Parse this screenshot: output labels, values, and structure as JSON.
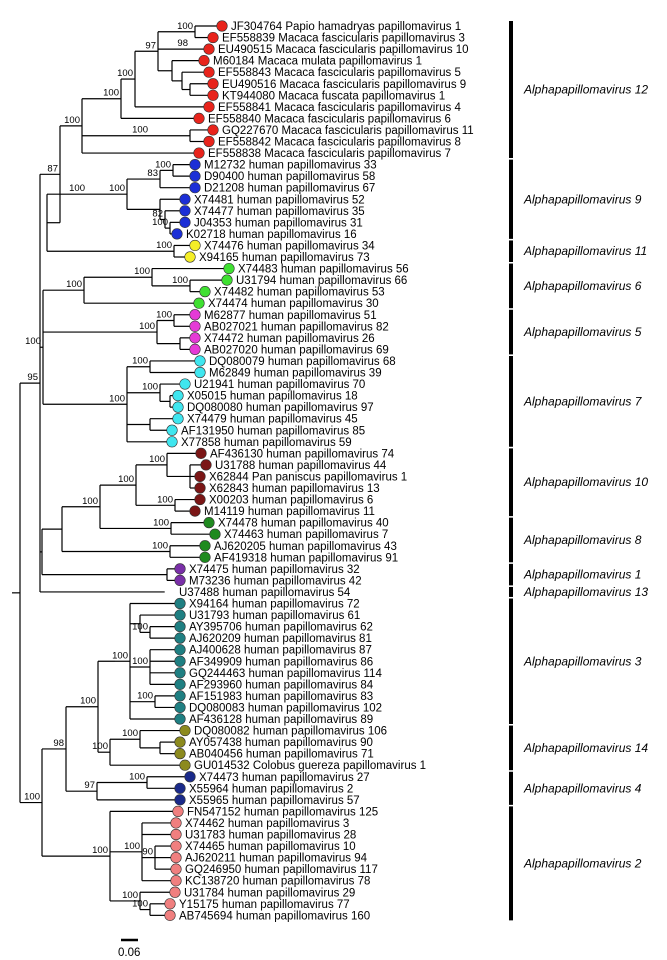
{
  "tree": {
    "taxa": [
      {
        "acc": "JF304764",
        "name": "Papio hamadryas papillomavirus 1",
        "color": "#e8241c"
      },
      {
        "acc": "EF558839",
        "name": "Macaca fascicularis papillomavirus 3",
        "color": "#e8241c"
      },
      {
        "acc": "EU490515",
        "name": "Macaca fascicularis papillomavirus 10",
        "color": "#e8241c"
      },
      {
        "acc": "M60184",
        "name": "Macaca mulata papillomavirus 1",
        "color": "#e8241c"
      },
      {
        "acc": "EF558843",
        "name": "Macaca fascicularis papillomavirus 5",
        "color": "#e8241c"
      },
      {
        "acc": "EU490516",
        "name": "Macaca fascicularis papillomavirus 9",
        "color": "#e8241c"
      },
      {
        "acc": "KT944080",
        "name": "Macaca fuscata papillomavirus 1",
        "color": "#e8241c"
      },
      {
        "acc": "EF558841",
        "name": "Macaca fascicularis papillomavirus 4",
        "color": "#e8241c"
      },
      {
        "acc": "EF558840",
        "name": "Macaca fascicularis papillomavirus 6",
        "color": "#e8241c"
      },
      {
        "acc": "GQ227670",
        "name": "Macaca fascicularis papillomavirus 11",
        "color": "#e8241c"
      },
      {
        "acc": "EF558842",
        "name": "Macaca fascicularis papillomavirus 8",
        "color": "#e8241c"
      },
      {
        "acc": "EF558838",
        "name": "Macaca fascicularis papillomavirus 7",
        "color": "#e8241c"
      },
      {
        "acc": "M12732",
        "name": "human papillomavirus 33",
        "color": "#1c2fd6"
      },
      {
        "acc": "D90400",
        "name": "human papillomavirus 58",
        "color": "#1c2fd6"
      },
      {
        "acc": "D21208",
        "name": "human papillomavirus 67",
        "color": "#1c2fd6"
      },
      {
        "acc": "X74481",
        "name": "human papillomavirus 52",
        "color": "#1c2fd6"
      },
      {
        "acc": "X74477",
        "name": "human papillomavirus 35",
        "color": "#1c2fd6"
      },
      {
        "acc": "J04353",
        "name": "human papillomavirus 31",
        "color": "#1c2fd6"
      },
      {
        "acc": "K02718",
        "name": "human papillomavirus 16",
        "color": "#1c2fd6"
      },
      {
        "acc": "X74476",
        "name": "human papillomavirus 34",
        "color": "#f5ee27"
      },
      {
        "acc": "X94165",
        "name": "human papillomavirus 73",
        "color": "#f5ee27"
      },
      {
        "acc": "X74483",
        "name": "human papillomavirus 56",
        "color": "#3fe031"
      },
      {
        "acc": "U31794",
        "name": "human papillomavirus 66",
        "color": "#3fe031"
      },
      {
        "acc": "X74482",
        "name": "human papillomavirus 53",
        "color": "#3fe031"
      },
      {
        "acc": "X74474",
        "name": "human papillomavirus 30",
        "color": "#3fe031"
      },
      {
        "acc": "M62877",
        "name": "human papillomavirus 51",
        "color": "#e53ad6"
      },
      {
        "acc": "AB027021",
        "name": "human papillomavirus 82",
        "color": "#e53ad6"
      },
      {
        "acc": "X74472",
        "name": "human papillomavirus 26",
        "color": "#e53ad6"
      },
      {
        "acc": "AB027020",
        "name": "human papillomavirus 69",
        "color": "#e53ad6"
      },
      {
        "acc": "DQ080079",
        "name": "human papillomavirus 68",
        "color": "#3fe6ef"
      },
      {
        "acc": "M62849",
        "name": "human papillomavirus 39",
        "color": "#3fe6ef"
      },
      {
        "acc": "U21941",
        "name": "human papillomavirus 70",
        "color": "#3fe6ef"
      },
      {
        "acc": "X05015",
        "name": "human papillomavirus 18",
        "color": "#3fe6ef"
      },
      {
        "acc": "DQ080080",
        "name": "human papillomavirus 97",
        "color": "#3fe6ef"
      },
      {
        "acc": "X74479",
        "name": "human papillomavirus 45",
        "color": "#3fe6ef"
      },
      {
        "acc": "AF131950",
        "name": "human papillomavirus 85",
        "color": "#3fe6ef"
      },
      {
        "acc": "X77858",
        "name": "human papillomavirus 59",
        "color": "#3fe6ef"
      },
      {
        "acc": "AF436130",
        "name": "human papillomavirus 74",
        "color": "#7b1616"
      },
      {
        "acc": "U31788",
        "name": "human papillomavirus 44",
        "color": "#7b1616"
      },
      {
        "acc": "X62844",
        "name": "Pan paniscus papillomavirus 1",
        "color": "#7b1616"
      },
      {
        "acc": "X62843",
        "name": "human papillomavirus 13",
        "color": "#7b1616"
      },
      {
        "acc": "X00203",
        "name": "human papillomavirus 6",
        "color": "#7b1616"
      },
      {
        "acc": "M14119",
        "name": "human papillomavirus 11",
        "color": "#7b1616"
      },
      {
        "acc": "X74478",
        "name": "human papillomavirus 40",
        "color": "#1f8a1f"
      },
      {
        "acc": "X74463",
        "name": "human papillomavirus 7",
        "color": "#1f8a1f"
      },
      {
        "acc": "AJ620205",
        "name": "human papillomavirus 43",
        "color": "#1f8a1f"
      },
      {
        "acc": "AF419318",
        "name": "human papillomavirus 91",
        "color": "#1f8a1f"
      },
      {
        "acc": "X74475",
        "name": "human papillomavirus 32",
        "color": "#7a2fa8"
      },
      {
        "acc": "M73236",
        "name": "human papillomavirus 42",
        "color": "#7a2fa8"
      },
      {
        "acc": "U37488",
        "name": "human papillomavirus 54",
        "color": ""
      },
      {
        "acc": "X94164",
        "name": "human papillomavirus 72",
        "color": "#1f7f82"
      },
      {
        "acc": "U31793",
        "name": "human papillomavirus 61",
        "color": "#1f7f82"
      },
      {
        "acc": "AY395706",
        "name": "human papillomavirus 62",
        "color": "#1f7f82"
      },
      {
        "acc": "AJ620209",
        "name": "human papillomavirus 81",
        "color": "#1f7f82"
      },
      {
        "acc": "AJ400628",
        "name": "human papillomavirus 87",
        "color": "#1f7f82"
      },
      {
        "acc": "AF349909",
        "name": "human papillomavirus 86",
        "color": "#1f7f82"
      },
      {
        "acc": "GQ244463",
        "name": "human papillomavirus 114",
        "color": "#1f7f82"
      },
      {
        "acc": "AF293960",
        "name": "human papillomavirus 84",
        "color": "#1f7f82"
      },
      {
        "acc": "AF151983",
        "name": "human papillomavirus 83",
        "color": "#1f7f82"
      },
      {
        "acc": "DQ080083",
        "name": "human papillomavirus 102",
        "color": "#1f7f82"
      },
      {
        "acc": "AF436128",
        "name": "human papillomavirus 89",
        "color": "#1f7f82"
      },
      {
        "acc": "DQ080082",
        "name": "human papillomavirus 106",
        "color": "#8c8a1e"
      },
      {
        "acc": "AY057438",
        "name": "human papillomavirus 90",
        "color": "#8c8a1e"
      },
      {
        "acc": "AB040456",
        "name": "human papillomavirus 71",
        "color": "#8c8a1e"
      },
      {
        "acc": "GU014532",
        "name": "Colobus guereza papillomavirus 1",
        "color": "#8c8a1e"
      },
      {
        "acc": "X74473",
        "name": "human papillomavirus 27",
        "color": "#1a2a8a"
      },
      {
        "acc": "X55964",
        "name": "human papillomavirus 2",
        "color": "#1a2a8a"
      },
      {
        "acc": "X55965",
        "name": "human papillomavirus 57",
        "color": "#1a2a8a"
      },
      {
        "acc": "FN547152",
        "name": "human papillomavirus 125",
        "color": "#f07f7f"
      },
      {
        "acc": "X74462",
        "name": "human papillomavirus 3",
        "color": "#f07f7f"
      },
      {
        "acc": "U31783",
        "name": "human papillomavirus 28",
        "color": "#f07f7f"
      },
      {
        "acc": "X74465",
        "name": "human papillomavirus 10",
        "color": "#f07f7f"
      },
      {
        "acc": "AJ620211",
        "name": "human papillomavirus 94",
        "color": "#f07f7f"
      },
      {
        "acc": "GQ246950",
        "name": "human papillomavirus 117",
        "color": "#f07f7f"
      },
      {
        "acc": "KC138720",
        "name": "human papillomavirus 78",
        "color": "#f07f7f"
      },
      {
        "acc": "U31784",
        "name": "human papillomavirus 29",
        "color": "#f07f7f"
      },
      {
        "acc": "Y15175",
        "name": "human papillomavirus 77",
        "color": "#f07f7f"
      },
      {
        "acc": "AB745694",
        "name": "human papillomavirus 160",
        "color": "#f07f7f"
      }
    ],
    "clades": [
      {
        "label": "Alphapapillomavirus 12",
        "from": 0,
        "to": 11
      },
      {
        "label": "Alphapapillomavirus 9",
        "from": 12,
        "to": 18
      },
      {
        "label": "Alphapapillomavirus 11",
        "from": 19,
        "to": 20
      },
      {
        "label": "Alphapapillomavirus 6",
        "from": 21,
        "to": 24
      },
      {
        "label": "Alphapapillomavirus 5",
        "from": 25,
        "to": 28
      },
      {
        "label": "Alphapapillomavirus 7",
        "from": 29,
        "to": 36
      },
      {
        "label": "Alphapapillomavirus 10",
        "from": 37,
        "to": 42
      },
      {
        "label": "Alphapapillomavirus 8",
        "from": 43,
        "to": 46
      },
      {
        "label": "Alphapapillomavirus 1",
        "from": 47,
        "to": 48
      },
      {
        "label": "Alphapapillomavirus 13",
        "from": 49,
        "to": 49
      },
      {
        "label": "Alphapapillomavirus 3",
        "from": 50,
        "to": 60
      },
      {
        "label": "Alphapapillomavirus 14",
        "from": 61,
        "to": 64
      },
      {
        "label": "Alphapapillomavirus 4",
        "from": 65,
        "to": 67
      },
      {
        "label": "Alphapapillomavirus 2",
        "from": 68,
        "to": 77
      }
    ],
    "scale_bar": {
      "label": "0.06"
    }
  }
}
